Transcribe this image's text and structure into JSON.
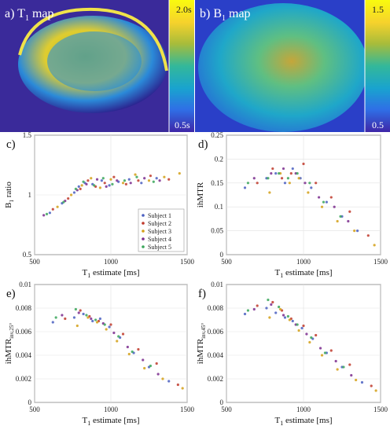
{
  "maps": {
    "t1": {
      "panel_label": "a)",
      "title_main": "T",
      "title_sub": "1",
      "title_rest": " map",
      "colorbar_top": "2.0s",
      "colorbar_bottom": "0.5s"
    },
    "b1": {
      "panel_label": "b)",
      "title_main": "B",
      "title_sub": "1",
      "title_rest": " map",
      "colorbar_top": "1.5",
      "colorbar_bottom": "0.5"
    }
  },
  "legend": [
    "Subject 1",
    "Subject 2",
    "Subject 3",
    "Subject 4",
    "Subject 5"
  ],
  "colors": {
    "subjects": [
      "#4a5fc1",
      "#c0392b",
      "#d4a017",
      "#7b2d8e",
      "#3aa65a"
    ],
    "colormap": [
      "#3e26a8",
      "#2f6fe6",
      "#19a3cf",
      "#33b89a",
      "#a8bc3a",
      "#f6d22c",
      "#f9fb0e"
    ]
  },
  "chart_data": [
    {
      "panel_label": "c)",
      "type": "scatter",
      "xlabel_main": "T",
      "xlabel_sub": "1",
      "xlabel_rest": " estimate [ms]",
      "ylabel_main": "B",
      "ylabel_sub": "1",
      "ylabel_rest": " ratio",
      "xlim": [
        500,
        1500
      ],
      "ylim": [
        0.5,
        1.5
      ],
      "xticks": [
        "500",
        "1000",
        "1500"
      ],
      "yticks": [
        "0.5",
        "1",
        "1.5"
      ],
      "legend_position": "bottom-right",
      "series": [
        {
          "name": "Subject 1",
          "points": [
            [
              600,
              0.85
            ],
            [
              680,
              0.93
            ],
            [
              760,
              1.02
            ],
            [
              790,
              1.07
            ],
            [
              830,
              1.1
            ],
            [
              880,
              1.09
            ],
            [
              940,
              1.12
            ],
            [
              990,
              1.08
            ],
            [
              1050,
              1.11
            ],
            [
              1120,
              1.13
            ],
            [
              1200,
              1.1
            ],
            [
              1300,
              1.14
            ]
          ]
        },
        {
          "name": "Subject 2",
          "points": [
            [
              620,
              0.88
            ],
            [
              720,
              0.97
            ],
            [
              800,
              1.05
            ],
            [
              850,
              1.12
            ],
            [
              900,
              1.07
            ],
            [
              960,
              1.1
            ],
            [
              1020,
              1.15
            ],
            [
              1100,
              1.09
            ],
            [
              1180,
              1.12
            ],
            [
              1260,
              1.16
            ],
            [
              1380,
              1.13
            ]
          ]
        },
        {
          "name": "Subject 3",
          "points": [
            [
              650,
              0.9
            ],
            [
              740,
              1.0
            ],
            [
              810,
              1.08
            ],
            [
              870,
              1.14
            ],
            [
              930,
              1.06
            ],
            [
              1000,
              1.13
            ],
            [
              1080,
              1.1
            ],
            [
              1160,
              1.17
            ],
            [
              1250,
              1.12
            ],
            [
              1350,
              1.15
            ],
            [
              1450,
              1.18
            ]
          ]
        },
        {
          "name": "Subject 4",
          "points": [
            [
              560,
              0.83
            ],
            [
              700,
              0.95
            ],
            [
              780,
              1.04
            ],
            [
              840,
              1.09
            ],
            [
              910,
              1.13
            ],
            [
              970,
              1.07
            ],
            [
              1040,
              1.12
            ],
            [
              1130,
              1.1
            ],
            [
              1220,
              1.14
            ],
            [
              1320,
              1.12
            ]
          ]
        },
        {
          "name": "Subject 5",
          "points": [
            [
              580,
              0.84
            ],
            [
              690,
              0.94
            ],
            [
              770,
              1.05
            ],
            [
              820,
              1.11
            ],
            [
              890,
              1.08
            ],
            [
              950,
              1.14
            ],
            [
              1010,
              1.09
            ],
            [
              1090,
              1.12
            ],
            [
              1170,
              1.15
            ],
            [
              1280,
              1.11
            ]
          ]
        }
      ]
    },
    {
      "panel_label": "d)",
      "type": "scatter",
      "xlabel_main": "T",
      "xlabel_sub": "1",
      "xlabel_rest": " estimate [ms]",
      "ylabel_main": "ihMTR",
      "ylabel_sub": "",
      "ylabel_rest": "",
      "xlim": [
        500,
        1500
      ],
      "ylim": [
        0,
        0.25
      ],
      "xticks": [
        "500",
        "1000",
        "1500"
      ],
      "yticks": [
        "0",
        "0.05",
        "0.1",
        "0.15",
        "0.2",
        "0.25"
      ],
      "series": [
        {
          "name": "Subject 1",
          "points": [
            [
              620,
              0.14
            ],
            [
              760,
              0.16
            ],
            [
              820,
              0.17
            ],
            [
              880,
              0.15
            ],
            [
              930,
              0.18
            ],
            [
              980,
              0.16
            ],
            [
              1050,
              0.14
            ],
            [
              1150,
              0.11
            ],
            [
              1250,
              0.08
            ],
            [
              1350,
              0.05
            ]
          ]
        },
        {
          "name": "Subject 2",
          "points": [
            [
              700,
              0.15
            ],
            [
              800,
              0.18
            ],
            [
              860,
              0.16
            ],
            [
              920,
              0.17
            ],
            [
              1000,
              0.19
            ],
            [
              1080,
              0.15
            ],
            [
              1180,
              0.12
            ],
            [
              1300,
              0.09
            ],
            [
              1420,
              0.04
            ]
          ]
        },
        {
          "name": "Subject 3",
          "points": [
            [
              780,
              0.13
            ],
            [
              850,
              0.17
            ],
            [
              910,
              0.15
            ],
            [
              970,
              0.16
            ],
            [
              1030,
              0.13
            ],
            [
              1120,
              0.1
            ],
            [
              1220,
              0.07
            ],
            [
              1330,
              0.05
            ],
            [
              1460,
              0.02
            ]
          ]
        },
        {
          "name": "Subject 4",
          "points": [
            [
              680,
              0.16
            ],
            [
              790,
              0.17
            ],
            [
              870,
              0.18
            ],
            [
              950,
              0.17
            ],
            [
              1010,
              0.15
            ],
            [
              1100,
              0.12
            ],
            [
              1200,
              0.1
            ],
            [
              1290,
              0.07
            ]
          ]
        },
        {
          "name": "Subject 5",
          "points": [
            [
              640,
              0.15
            ],
            [
              770,
              0.16
            ],
            [
              840,
              0.17
            ],
            [
              900,
              0.16
            ],
            [
              960,
              0.17
            ],
            [
              1040,
              0.15
            ],
            [
              1130,
              0.11
            ],
            [
              1240,
              0.08
            ]
          ]
        }
      ]
    },
    {
      "panel_label": "e)",
      "type": "scatter",
      "xlabel_main": "T",
      "xlabel_sub": "1",
      "xlabel_rest": " estimate [ms]",
      "ylabel_main": "ihMTR",
      "ylabel_sub": "inv,25°",
      "ylabel_rest": "",
      "xlim": [
        500,
        1500
      ],
      "ylim": [
        0,
        0.01
      ],
      "xticks": [
        "500",
        "1000",
        "1500"
      ],
      "yticks": [
        "0",
        "0.002",
        "0.004",
        "0.006",
        "0.008",
        "0.01"
      ],
      "series": [
        {
          "name": "Subject 1",
          "points": [
            [
              620,
              0.0068
            ],
            [
              760,
              0.0072
            ],
            [
              820,
              0.0075
            ],
            [
              880,
              0.0069
            ],
            [
              930,
              0.0071
            ],
            [
              990,
              0.0064
            ],
            [
              1060,
              0.0055
            ],
            [
              1150,
              0.0042
            ],
            [
              1250,
              0.003
            ],
            [
              1380,
              0.0018
            ]
          ]
        },
        {
          "name": "Subject 2",
          "points": [
            [
              700,
              0.0071
            ],
            [
              800,
              0.0078
            ],
            [
              860,
              0.0073
            ],
            [
              920,
              0.0069
            ],
            [
              1000,
              0.0066
            ],
            [
              1080,
              0.0058
            ],
            [
              1180,
              0.0045
            ],
            [
              1300,
              0.0033
            ],
            [
              1440,
              0.0015
            ]
          ]
        },
        {
          "name": "Subject 3",
          "points": [
            [
              780,
              0.0065
            ],
            [
              850,
              0.0072
            ],
            [
              910,
              0.0068
            ],
            [
              970,
              0.0062
            ],
            [
              1040,
              0.0052
            ],
            [
              1120,
              0.0041
            ],
            [
              1220,
              0.0029
            ],
            [
              1340,
              0.002
            ],
            [
              1470,
              0.0012
            ]
          ]
        },
        {
          "name": "Subject 4",
          "points": [
            [
              680,
              0.0074
            ],
            [
              790,
              0.0076
            ],
            [
              870,
              0.0071
            ],
            [
              950,
              0.0067
            ],
            [
              1020,
              0.0059
            ],
            [
              1110,
              0.0047
            ],
            [
              1210,
              0.0036
            ],
            [
              1310,
              0.0024
            ]
          ]
        },
        {
          "name": "Subject 5",
          "points": [
            [
              640,
              0.0072
            ],
            [
              770,
              0.0079
            ],
            [
              840,
              0.0074
            ],
            [
              900,
              0.007
            ],
            [
              960,
              0.0066
            ],
            [
              1050,
              0.0056
            ],
            [
              1140,
              0.0043
            ],
            [
              1260,
              0.0031
            ]
          ]
        }
      ]
    },
    {
      "panel_label": "f)",
      "type": "scatter",
      "xlabel_main": "T",
      "xlabel_sub": "1",
      "xlabel_rest": " estimate [ms]",
      "ylabel_main": "ihMTR",
      "ylabel_sub": "inv,45°",
      "ylabel_rest": "",
      "xlim": [
        500,
        1500
      ],
      "ylim": [
        0,
        0.01
      ],
      "xticks": [
        "500",
        "1000",
        "1500"
      ],
      "yticks": [
        "0",
        "0.002",
        "0.004",
        "0.006",
        "0.008",
        "0.01"
      ],
      "series": [
        {
          "name": "Subject 1",
          "points": [
            [
              620,
              0.0075
            ],
            [
              760,
              0.008
            ],
            [
              820,
              0.0076
            ],
            [
              880,
              0.0072
            ],
            [
              930,
              0.0069
            ],
            [
              990,
              0.0063
            ],
            [
              1060,
              0.0054
            ],
            [
              1150,
              0.0042
            ],
            [
              1250,
              0.003
            ],
            [
              1380,
              0.0017
            ]
          ]
        },
        {
          "name": "Subject 2",
          "points": [
            [
              700,
              0.0082
            ],
            [
              800,
              0.0085
            ],
            [
              860,
              0.0078
            ],
            [
              920,
              0.0071
            ],
            [
              1000,
              0.0065
            ],
            [
              1080,
              0.0057
            ],
            [
              1180,
              0.0044
            ],
            [
              1300,
              0.0032
            ],
            [
              1440,
              0.0014
            ]
          ]
        },
        {
          "name": "Subject 3",
          "points": [
            [
              780,
              0.0072
            ],
            [
              850,
              0.0079
            ],
            [
              910,
              0.007
            ],
            [
              970,
              0.0061
            ],
            [
              1040,
              0.0051
            ],
            [
              1120,
              0.004
            ],
            [
              1220,
              0.0028
            ],
            [
              1340,
              0.0019
            ],
            [
              1470,
              0.001
            ]
          ]
        },
        {
          "name": "Subject 4",
          "points": [
            [
              680,
              0.0079
            ],
            [
              790,
              0.0083
            ],
            [
              870,
              0.0074
            ],
            [
              950,
              0.0066
            ],
            [
              1020,
              0.0058
            ],
            [
              1110,
              0.0046
            ],
            [
              1210,
              0.0035
            ],
            [
              1310,
              0.0023
            ]
          ]
        },
        {
          "name": "Subject 5",
          "points": [
            [
              640,
              0.0078
            ],
            [
              770,
              0.0087
            ],
            [
              840,
              0.0081
            ],
            [
              900,
              0.0073
            ],
            [
              960,
              0.0066
            ],
            [
              1050,
              0.0055
            ],
            [
              1140,
              0.0042
            ],
            [
              1260,
              0.003
            ]
          ]
        }
      ]
    }
  ]
}
